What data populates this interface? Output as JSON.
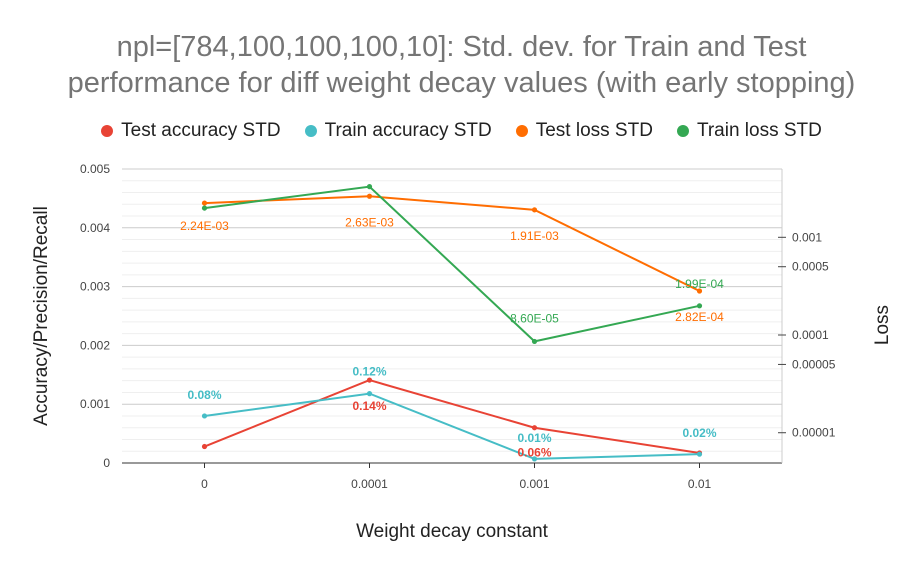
{
  "chart_data": {
    "type": "line",
    "title_lines": [
      "npl=[784,100,100,100,10]: Std. dev. for Train and Test",
      "performance for diff weight decay values (with early stopping)"
    ],
    "xlabel": "Weight decay constant",
    "ylabel": "Accuracy/Precision/Recall",
    "y2label": "Loss",
    "categories": [
      "0",
      "0.0001",
      "0.001",
      "0.01"
    ],
    "ylim": [
      0,
      0.005
    ],
    "yticks": [
      "0",
      "0.001",
      "0.002",
      "0.003",
      "0.004",
      "0.005"
    ],
    "y2_scale": "log",
    "y2ticks": [
      "0.001",
      "0.0005",
      "0.0001",
      "0.00005",
      "0.00001"
    ],
    "y2tick_values": [
      0.001,
      0.0005,
      0.0001,
      5e-05,
      1e-05
    ],
    "legend_position": "top",
    "grid": true,
    "series": [
      {
        "name": "Test accuracy STD",
        "color": "#e84335",
        "axis": "left",
        "values": [
          0.00028,
          0.00141,
          0.0006,
          0.00017
        ],
        "labels": [
          "",
          "0.14%",
          "0.06%",
          ""
        ]
      },
      {
        "name": "Train accuracy STD",
        "color": "#46bdc6",
        "axis": "left",
        "values": [
          0.0008,
          0.00118,
          7e-05,
          0.00015
        ],
        "labels": [
          "0.08%",
          "0.12%",
          "0.01%",
          "0.02%"
        ]
      },
      {
        "name": "Test loss STD",
        "color": "#ff6d01",
        "axis": "right",
        "values": [
          0.00224,
          0.00263,
          0.00191,
          0.000282
        ],
        "labels": [
          "2.24E-03",
          "2.63E-03",
          "1.91E-03",
          "2.82E-04"
        ]
      },
      {
        "name": "Train loss STD",
        "color": "#34a853",
        "axis": "right",
        "values": [
          0.00199,
          0.0033,
          8.6e-05,
          0.000199
        ],
        "labels": [
          "",
          "",
          "8.60E-05",
          "1.99E-04"
        ]
      }
    ]
  }
}
